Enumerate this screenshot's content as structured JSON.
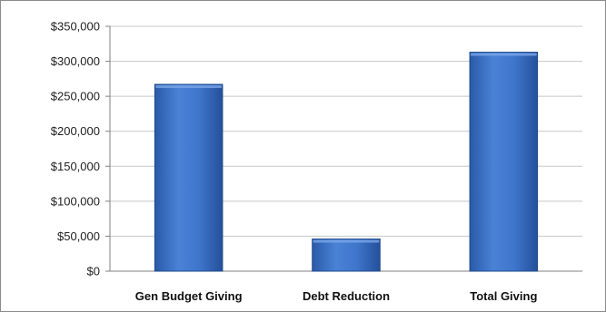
{
  "chart_data": {
    "type": "bar",
    "title": "",
    "categories": [
      "Gen Budget Giving",
      "Debt Reduction",
      "Total Giving"
    ],
    "values": [
      267000,
      46000,
      313000
    ],
    "ylim": [
      0,
      350000
    ],
    "ytick_values": [
      0,
      50000,
      100000,
      150000,
      200000,
      250000,
      300000,
      350000
    ],
    "ytick_labels": [
      "$0",
      "$50,000",
      "$100,000",
      "$150,000",
      "$200,000",
      "$250,000",
      "$300,000",
      "$350,000"
    ],
    "grid": true,
    "legend": "none",
    "bar_color": "#3a6fc2",
    "bar_edge_color": "#1f4a8c",
    "grid_color": "#c8c8c8"
  }
}
